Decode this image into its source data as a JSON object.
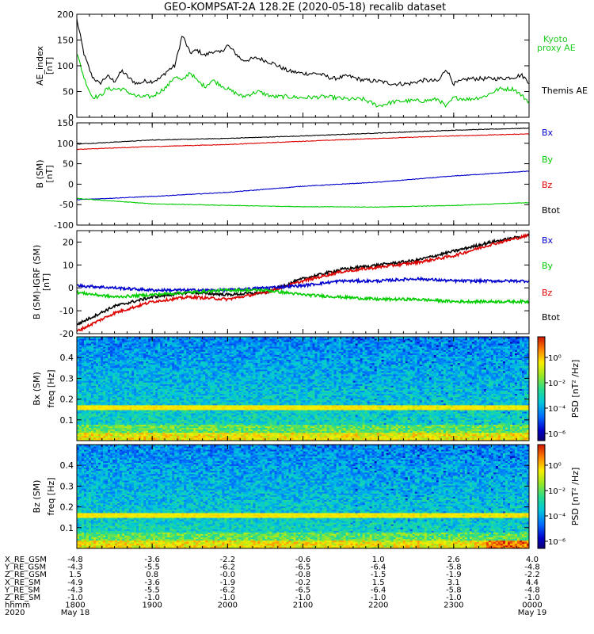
{
  "title": "GEO-KOMPSAT-2A 128.2E (2020-05-18) recalib dataset",
  "colors": {
    "black": "#000000",
    "green": "#00cc00",
    "red": "#dd0000",
    "blue": "#0000cc",
    "kyoto": "#22cc22"
  },
  "chart_data": [
    {
      "type": "line",
      "ylabel": "AE_index",
      "yunit": "[nT]",
      "ylim": [
        0,
        200
      ],
      "yticks": [
        0,
        50,
        100,
        150,
        200
      ],
      "xlim": [
        18.0,
        24.0
      ],
      "legend": [
        {
          "name": "Kyoto proxy AE",
          "color": "green"
        },
        {
          "name": "Themis AE",
          "color": "black"
        }
      ],
      "series": [
        {
          "name": "Themis AE",
          "color": "black",
          "x": [
            18.0,
            18.1,
            18.2,
            18.3,
            18.4,
            18.5,
            18.6,
            18.7,
            18.8,
            18.9,
            19.0,
            19.1,
            19.2,
            19.3,
            19.4,
            19.5,
            19.6,
            19.7,
            19.8,
            19.9,
            20.0,
            20.2,
            20.4,
            20.6,
            20.8,
            21.0,
            21.2,
            21.4,
            21.6,
            21.8,
            22.0,
            22.2,
            22.4,
            22.6,
            22.8,
            22.9,
            23.0,
            23.2,
            23.4,
            23.6,
            23.8,
            23.9,
            24.0
          ],
          "y": [
            190,
            120,
            80,
            65,
            80,
            70,
            90,
            75,
            65,
            70,
            70,
            75,
            90,
            100,
            160,
            125,
            130,
            120,
            128,
            125,
            140,
            110,
            115,
            105,
            90,
            85,
            85,
            75,
            80,
            72,
            70,
            65,
            65,
            72,
            70,
            95,
            65,
            75,
            75,
            75,
            78,
            82,
            68
          ]
        },
        {
          "name": "Kyoto proxy AE",
          "color": "green",
          "x": [
            18.0,
            18.1,
            18.2,
            18.3,
            18.4,
            18.6,
            18.8,
            19.0,
            19.2,
            19.3,
            19.4,
            19.5,
            19.6,
            19.7,
            19.8,
            20.0,
            20.2,
            20.4,
            20.6,
            20.8,
            21.0,
            21.3,
            21.6,
            21.8,
            22.0,
            22.2,
            22.4,
            22.6,
            22.8,
            22.9,
            23.0,
            23.2,
            23.4,
            23.6,
            23.8,
            24.0
          ],
          "y": [
            125,
            75,
            40,
            40,
            55,
            55,
            40,
            40,
            60,
            80,
            70,
            88,
            70,
            60,
            72,
            55,
            40,
            50,
            40,
            40,
            38,
            40,
            35,
            35,
            22,
            30,
            32,
            32,
            35,
            20,
            38,
            35,
            40,
            55,
            55,
            30
          ]
        }
      ]
    },
    {
      "type": "line",
      "ylabel": "B (SM)",
      "yunit": "[nT]",
      "ylim": [
        -100,
        150
      ],
      "yticks": [
        -100,
        -50,
        0,
        50,
        100,
        150
      ],
      "xlim": [
        18.0,
        24.0
      ],
      "legend": [
        {
          "name": "Bx",
          "color": "blue"
        },
        {
          "name": "By",
          "color": "green"
        },
        {
          "name": "Bz",
          "color": "red"
        },
        {
          "name": "Btot",
          "color": "black"
        }
      ],
      "series": [
        {
          "name": "Btot",
          "color": "black",
          "x": [
            18,
            19,
            20,
            21,
            22,
            23,
            24
          ],
          "y": [
            98,
            108,
            112,
            118,
            125,
            132,
            137
          ]
        },
        {
          "name": "Bz",
          "color": "red",
          "x": [
            18,
            19,
            20,
            21,
            22,
            23,
            24
          ],
          "y": [
            85,
            92,
            97,
            105,
            112,
            118,
            123
          ]
        },
        {
          "name": "Bx",
          "color": "blue",
          "x": [
            18,
            19,
            20,
            21,
            22,
            23,
            24
          ],
          "y": [
            -38,
            -30,
            -20,
            -5,
            5,
            20,
            32
          ]
        },
        {
          "name": "By",
          "color": "green",
          "x": [
            18,
            19,
            20,
            21,
            22,
            23,
            24
          ],
          "y": [
            -35,
            -48,
            -52,
            -55,
            -56,
            -52,
            -45
          ]
        }
      ]
    },
    {
      "type": "line",
      "ylabel": "B (SM)-IGRF (SM)",
      "yunit": "[nT]",
      "ylim": [
        -20,
        25
      ],
      "yticks": [
        -20,
        -10,
        0,
        10,
        20
      ],
      "xlim": [
        18.0,
        24.0
      ],
      "legend": [
        {
          "name": "Bx",
          "color": "blue"
        },
        {
          "name": "By",
          "color": "green"
        },
        {
          "name": "Bz",
          "color": "red"
        },
        {
          "name": "Btot",
          "color": "black"
        }
      ],
      "series": [
        {
          "name": "Btot",
          "color": "black",
          "x": [
            18.0,
            18.5,
            19.0,
            19.5,
            20.0,
            20.5,
            21.0,
            21.5,
            22.0,
            22.5,
            23.0,
            23.5,
            24.0
          ],
          "y": [
            -16,
            -8,
            -4,
            -2,
            -3,
            -2,
            4,
            8,
            10,
            12,
            16,
            20,
            23
          ]
        },
        {
          "name": "Bz",
          "color": "red",
          "x": [
            18.0,
            18.5,
            19.0,
            19.5,
            20.0,
            20.5,
            21.0,
            21.5,
            22.0,
            22.5,
            23.0,
            23.5,
            24.0
          ],
          "y": [
            -19,
            -11,
            -6,
            -4,
            -5,
            -2,
            3,
            7,
            9,
            11,
            14,
            19,
            23
          ]
        },
        {
          "name": "Bx",
          "color": "blue",
          "x": [
            18.0,
            18.5,
            19.0,
            19.5,
            20.0,
            20.5,
            21.0,
            21.5,
            22.0,
            22.5,
            23.0,
            23.5,
            24.0
          ],
          "y": [
            1,
            0,
            -1,
            -1,
            -1,
            0,
            1,
            3,
            3,
            4,
            3,
            3,
            3
          ]
        },
        {
          "name": "By",
          "color": "green",
          "x": [
            18.0,
            18.5,
            19.0,
            19.5,
            20.0,
            20.5,
            21.0,
            21.5,
            22.0,
            22.5,
            23.0,
            23.5,
            24.0
          ],
          "y": [
            -2,
            -4,
            -3,
            -2,
            -1,
            -1,
            -3,
            -4,
            -5,
            -5,
            -6,
            -6,
            -6
          ]
        }
      ]
    },
    {
      "type": "heatmap",
      "ylabel": "Bx (SM)",
      "ylabel2": "freq",
      "yunit": "[Hz]",
      "ylim": [
        0,
        0.5
      ],
      "yticks": [
        0.1,
        0.2,
        0.3,
        0.4
      ],
      "xlim": [
        18.0,
        24.0
      ],
      "colorbar": {
        "label": "PSD",
        "unit": "[nT² /Hz]",
        "ticks": [
          "10⁰",
          "10⁻²",
          "10⁻⁴",
          "10⁻⁶"
        ],
        "range": [
          -7,
          1
        ]
      },
      "band_freq": 0.16
    },
    {
      "type": "heatmap",
      "ylabel": "Bz (SM)",
      "ylabel2": "freq",
      "yunit": "[Hz]",
      "ylim": [
        0,
        0.5
      ],
      "yticks": [
        0.1,
        0.2,
        0.3,
        0.4
      ],
      "xlim": [
        18.0,
        24.0
      ],
      "colorbar": {
        "label": "PSD",
        "unit": "[nT² /Hz]",
        "ticks": [
          "10⁰",
          "10⁻²",
          "10⁻⁴",
          "10⁻⁶"
        ],
        "range": [
          -7,
          1
        ]
      },
      "band_freq": 0.16
    }
  ],
  "ephemeris": {
    "row_labels": [
      "X_RE_GSM",
      "Y_RE_GSM",
      "Z_RE_GSM",
      "X_RE_SM",
      "Y_RE_SM",
      "Z_RE_SM",
      "hhmm",
      "2020"
    ],
    "columns": [
      [
        "-4.8",
        "-4.3",
        "1.5",
        "-4.9",
        "-4.3",
        "-1.0",
        "1800",
        "May 18"
      ],
      [
        "-3.6",
        "-5.5",
        "0.8",
        "-3.6",
        "-5.5",
        "-1.0",
        "1900",
        ""
      ],
      [
        "-2.2",
        "-6.2",
        "-0.0",
        "-1.9",
        "-6.2",
        "-1.0",
        "2000",
        ""
      ],
      [
        "-0.6",
        "-6.5",
        "-0.8",
        "-0.2",
        "-6.5",
        "-1.0",
        "2100",
        ""
      ],
      [
        "1.0",
        "-6.4",
        "-1.5",
        "1.5",
        "-6.4",
        "-1.0",
        "2200",
        ""
      ],
      [
        "2.6",
        "-5.8",
        "-1.9",
        "3.1",
        "-5.8",
        "-1.0",
        "2300",
        ""
      ],
      [
        "4.0",
        "-4.8",
        "-2.2",
        "4.4",
        "-4.8",
        "-1.0",
        "0000",
        "May 19"
      ]
    ]
  }
}
